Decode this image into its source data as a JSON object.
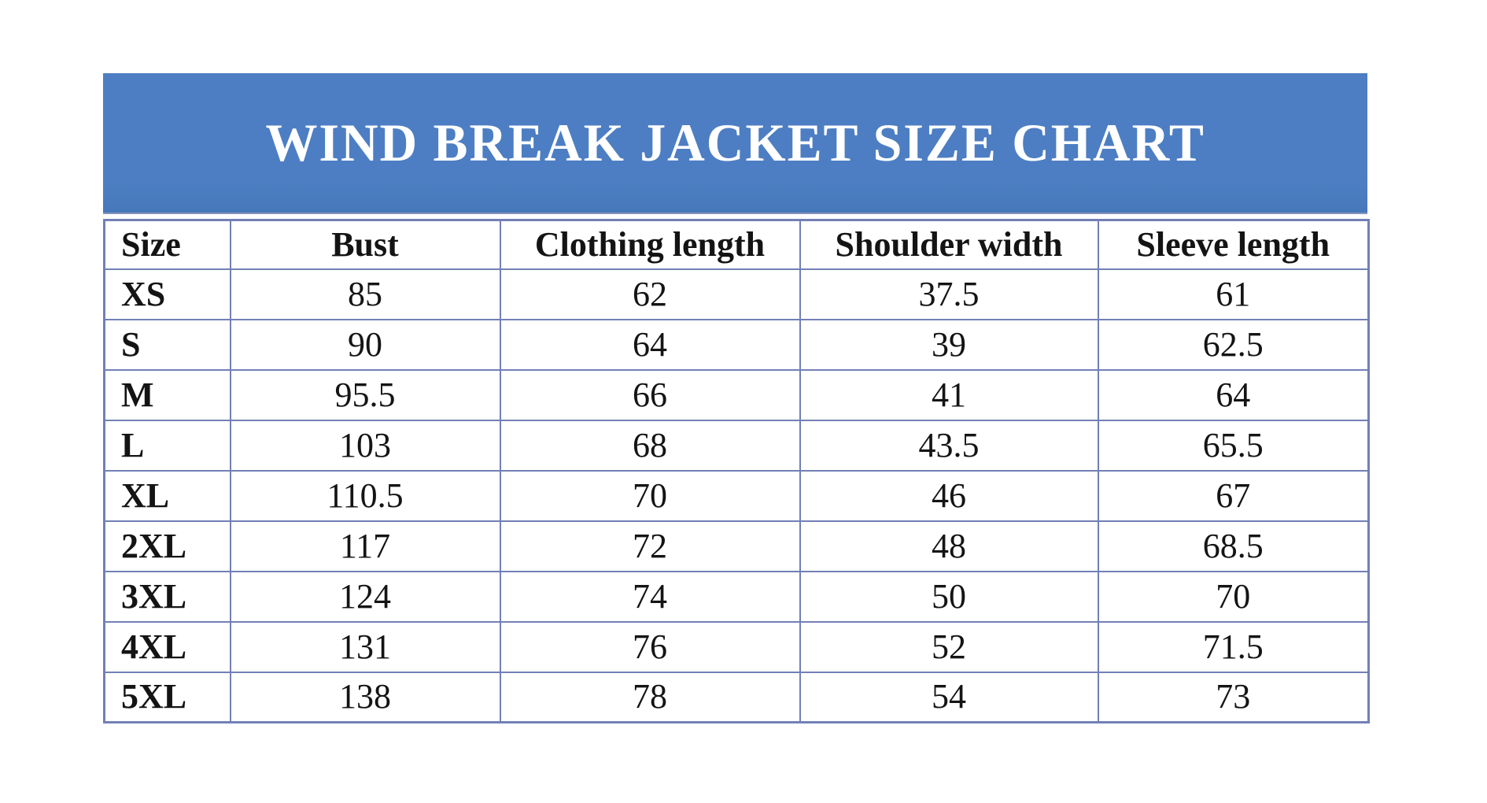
{
  "colors": {
    "banner_bg": "#4d7ec3",
    "banner_bg_bottom": "#4678ba",
    "banner_edge": "#8793bd",
    "banner_text": "#ffffff",
    "table_border": "#7280b6",
    "text": "#141414",
    "page_bg": "#ffffff"
  },
  "banner": {
    "title": "WIND BREAK JACKET SIZE CHART"
  },
  "table": {
    "columns": [
      "Size",
      "Bust",
      "Clothing length",
      "Shoulder width",
      "Sleeve length"
    ],
    "rows": [
      [
        "XS",
        "85",
        "62",
        "37.5",
        "61"
      ],
      [
        "S",
        "90",
        "64",
        "39",
        "62.5"
      ],
      [
        "M",
        "95.5",
        "66",
        "41",
        "64"
      ],
      [
        "L",
        "103",
        "68",
        "43.5",
        "65.5"
      ],
      [
        "XL",
        "110.5",
        "70",
        "46",
        "67"
      ],
      [
        "2XL",
        "117",
        "72",
        "48",
        "68.5"
      ],
      [
        "3XL",
        "124",
        "74",
        "50",
        "70"
      ],
      [
        "4XL",
        "131",
        "76",
        "52",
        "71.5"
      ],
      [
        "5XL",
        "138",
        "78",
        "54",
        "73"
      ]
    ]
  },
  "chart_data": {
    "type": "table",
    "title": "WIND BREAK JACKET SIZE CHART",
    "columns": [
      "Size",
      "Bust",
      "Clothing length",
      "Shoulder width",
      "Sleeve length"
    ],
    "rows": [
      {
        "size": "XS",
        "bust": 85,
        "clothing_length": 62,
        "shoulder_width": 37.5,
        "sleeve_length": 61
      },
      {
        "size": "S",
        "bust": 90,
        "clothing_length": 64,
        "shoulder_width": 39,
        "sleeve_length": 62.5
      },
      {
        "size": "M",
        "bust": 95.5,
        "clothing_length": 66,
        "shoulder_width": 41,
        "sleeve_length": 64
      },
      {
        "size": "L",
        "bust": 103,
        "clothing_length": 68,
        "shoulder_width": 43.5,
        "sleeve_length": 65.5
      },
      {
        "size": "XL",
        "bust": 110.5,
        "clothing_length": 70,
        "shoulder_width": 46,
        "sleeve_length": 67
      },
      {
        "size": "2XL",
        "bust": 117,
        "clothing_length": 72,
        "shoulder_width": 48,
        "sleeve_length": 68.5
      },
      {
        "size": "3XL",
        "bust": 124,
        "clothing_length": 74,
        "shoulder_width": 50,
        "sleeve_length": 70
      },
      {
        "size": "4XL",
        "bust": 131,
        "clothing_length": 76,
        "shoulder_width": 52,
        "sleeve_length": 71.5
      },
      {
        "size": "5XL",
        "bust": 138,
        "clothing_length": 78,
        "shoulder_width": 54,
        "sleeve_length": 73
      }
    ]
  }
}
